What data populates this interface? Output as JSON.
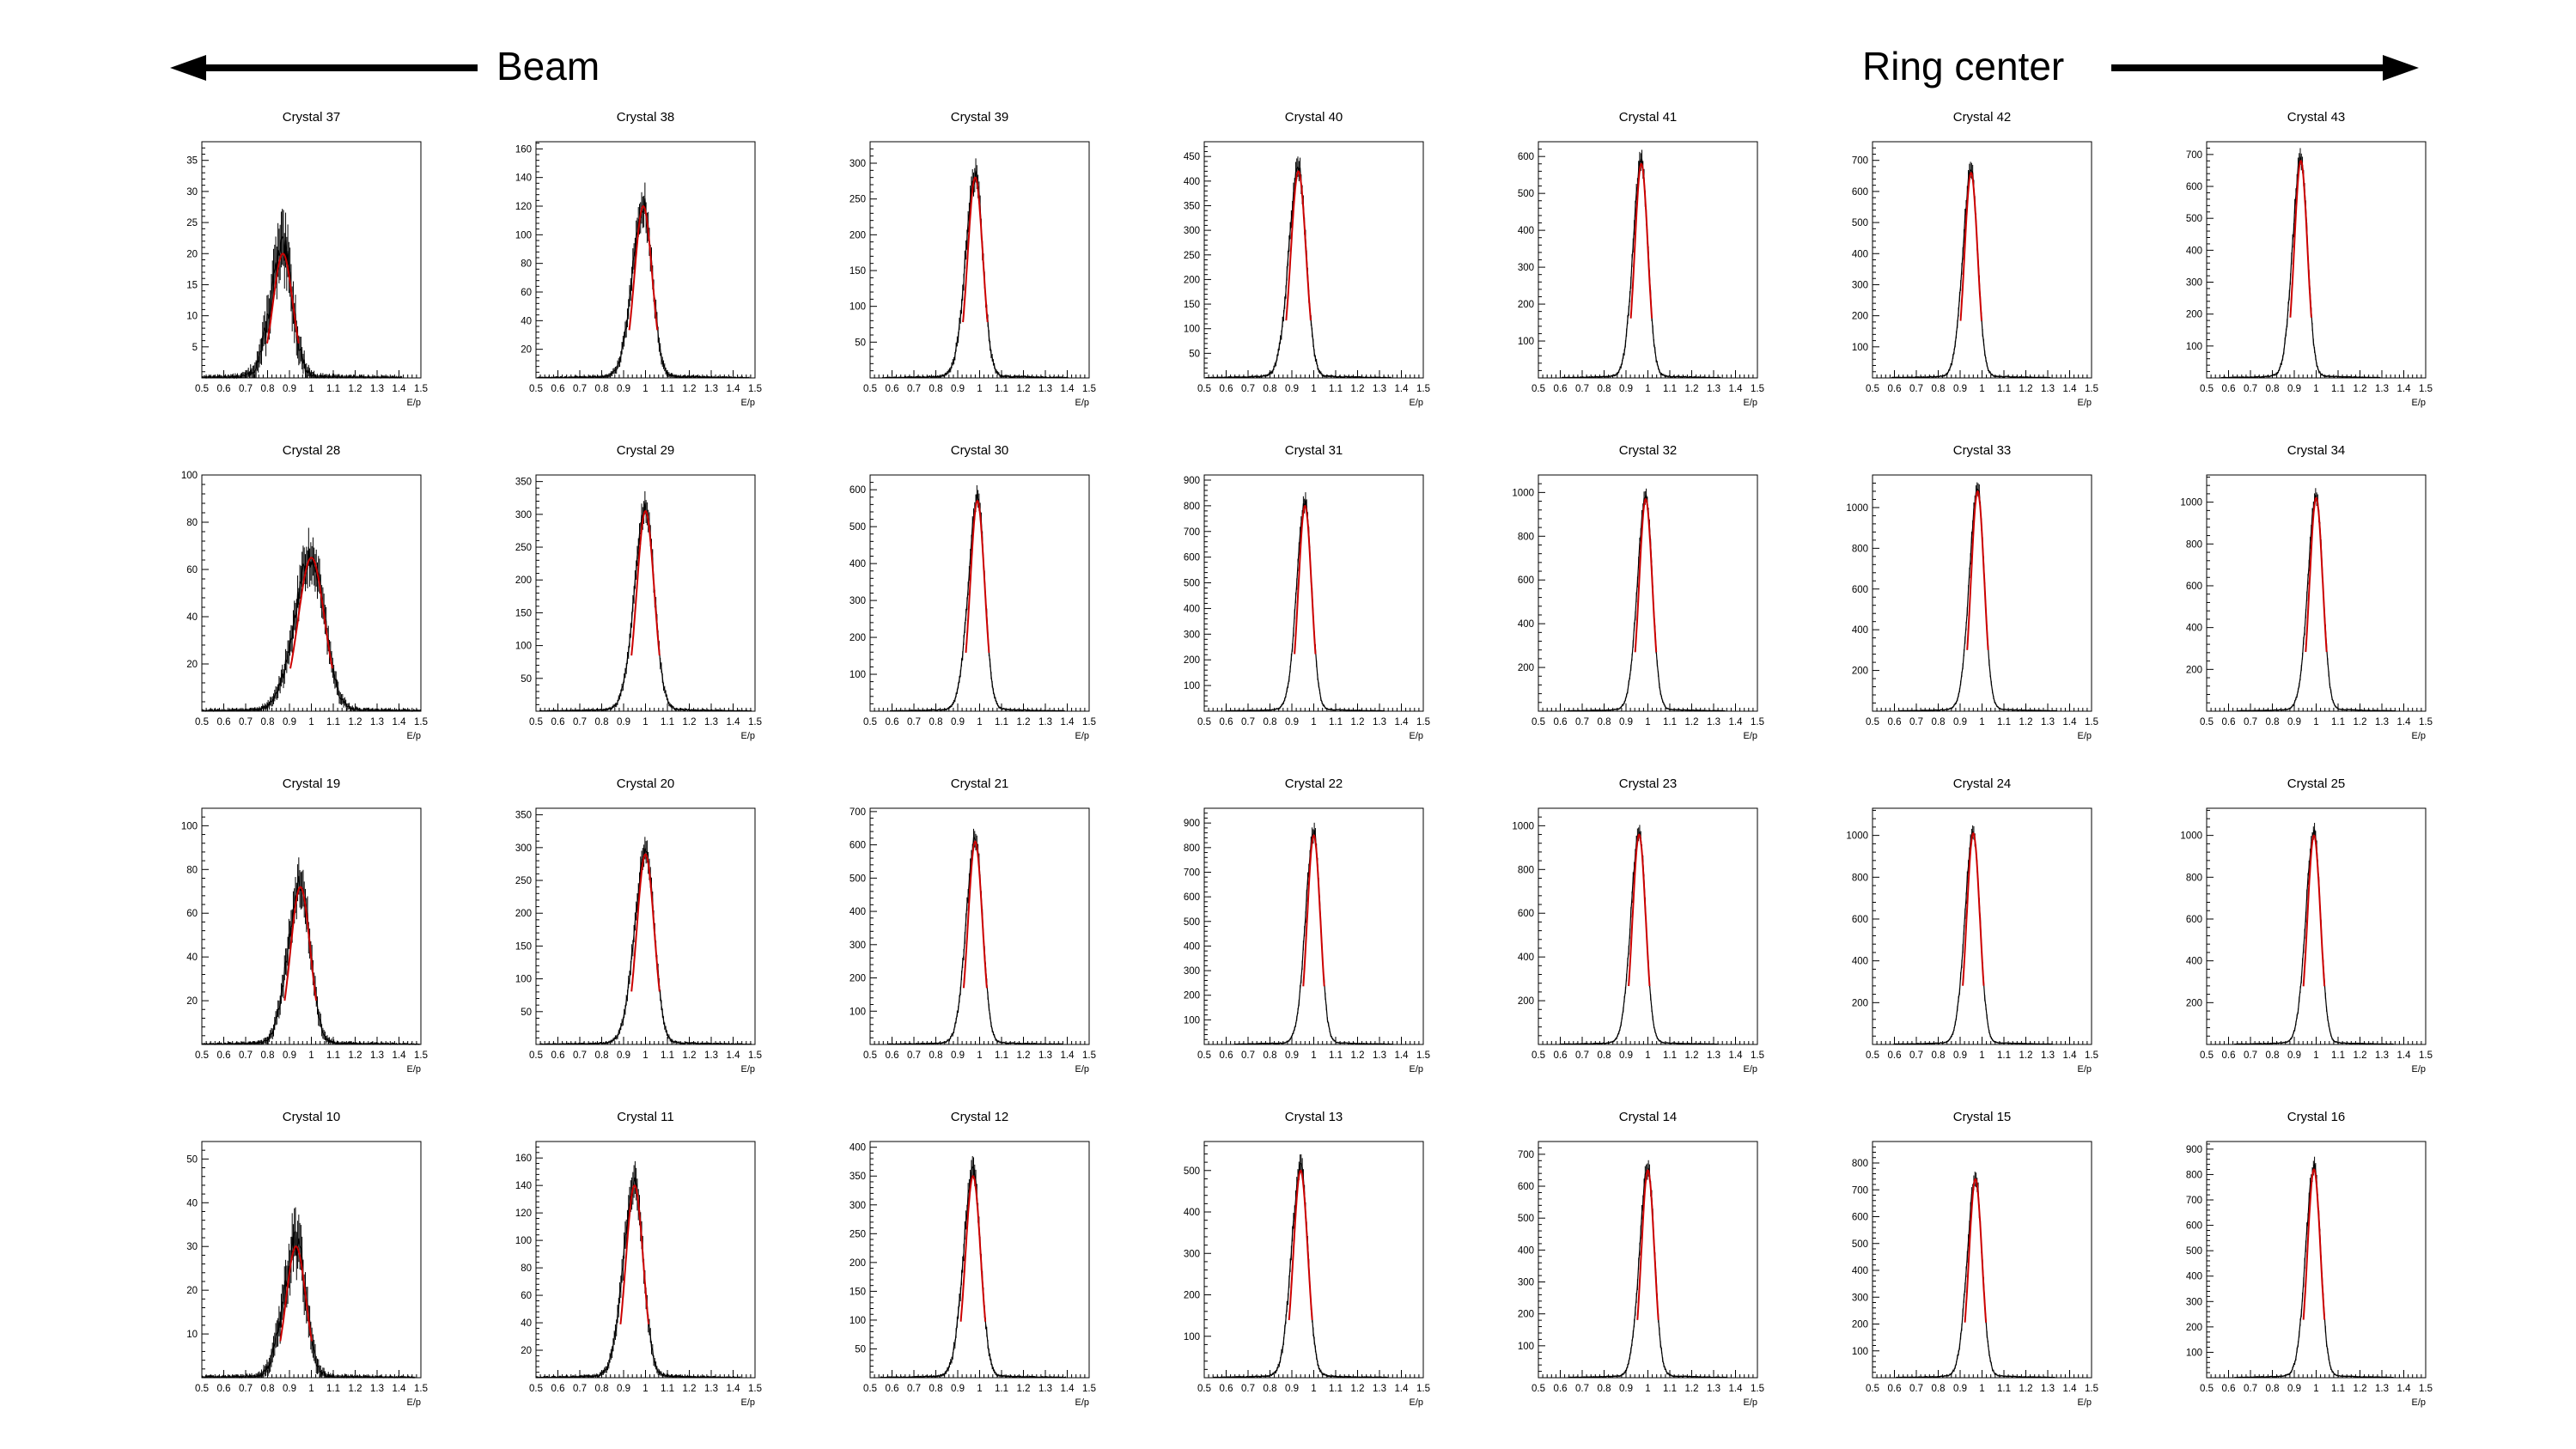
{
  "header": {
    "left_label": "Beam",
    "right_label": "Ring center"
  },
  "colors": {
    "histogram": "#000000",
    "fit": "#cc0000",
    "frame": "#000000"
  },
  "chart_data": {
    "type": "histogram-grid",
    "rows": 4,
    "cols": 7,
    "xlabel": "E/p",
    "xlim": [
      0.5,
      1.5
    ],
    "x_ticks": [
      "0.5",
      "0.6",
      "0.7",
      "0.8",
      "0.9",
      "1",
      "1.1",
      "1.2",
      "1.3",
      "1.4",
      "1.5"
    ],
    "fit": "gaussian (red)",
    "panels": [
      {
        "title": "Crystal 37",
        "peak_x": 0.87,
        "peak_y": 20,
        "sigma": 0.045,
        "ylim": [
          0,
          38
        ],
        "y_ticks": [
          "5",
          "10",
          "15",
          "20",
          "25",
          "30",
          "35"
        ]
      },
      {
        "title": "Crystal 38",
        "peak_x": 0.99,
        "peak_y": 120,
        "sigma": 0.04,
        "ylim": [
          0,
          165
        ],
        "y_ticks": [
          "20",
          "40",
          "60",
          "80",
          "100",
          "120",
          "140",
          "160"
        ]
      },
      {
        "title": "Crystal 39",
        "peak_x": 0.98,
        "peak_y": 280,
        "sigma": 0.035,
        "ylim": [
          0,
          330
        ],
        "y_ticks": [
          "50",
          "100",
          "150",
          "200",
          "250",
          "300"
        ]
      },
      {
        "title": "Crystal 40",
        "peak_x": 0.93,
        "peak_y": 420,
        "sigma": 0.035,
        "ylim": [
          0,
          480
        ],
        "y_ticks": [
          "50",
          "100",
          "150",
          "200",
          "250",
          "300",
          "350",
          "400",
          "450"
        ]
      },
      {
        "title": "Crystal 41",
        "peak_x": 0.97,
        "peak_y": 580,
        "sigma": 0.03,
        "ylim": [
          0,
          640
        ],
        "y_ticks": [
          "100",
          "200",
          "300",
          "400",
          "500",
          "600"
        ]
      },
      {
        "title": "Crystal 42",
        "peak_x": 0.95,
        "peak_y": 660,
        "sigma": 0.03,
        "ylim": [
          0,
          760
        ],
        "y_ticks": [
          "100",
          "200",
          "300",
          "400",
          "500",
          "600",
          "700"
        ]
      },
      {
        "title": "Crystal 43",
        "peak_x": 0.93,
        "peak_y": 680,
        "sigma": 0.03,
        "ylim": [
          0,
          740
        ],
        "y_ticks": [
          "100",
          "200",
          "300",
          "400",
          "500",
          "600",
          "700"
        ]
      },
      {
        "title": "Crystal 28",
        "peak_x": 1.0,
        "peak_y": 65,
        "sigma": 0.06,
        "ylim": [
          0,
          100
        ],
        "y_ticks": [
          "20",
          "40",
          "60",
          "80",
          "100"
        ]
      },
      {
        "title": "Crystal 29",
        "peak_x": 1.0,
        "peak_y": 305,
        "sigma": 0.04,
        "ylim": [
          0,
          360
        ],
        "y_ticks": [
          "50",
          "100",
          "150",
          "200",
          "250",
          "300",
          "350"
        ]
      },
      {
        "title": "Crystal 30",
        "peak_x": 0.99,
        "peak_y": 570,
        "sigma": 0.033,
        "ylim": [
          0,
          640
        ],
        "y_ticks": [
          "100",
          "200",
          "300",
          "400",
          "500",
          "600"
        ]
      },
      {
        "title": "Crystal 31",
        "peak_x": 0.96,
        "peak_y": 800,
        "sigma": 0.03,
        "ylim": [
          0,
          920
        ],
        "y_ticks": [
          "100",
          "200",
          "300",
          "400",
          "500",
          "600",
          "700",
          "800",
          "900"
        ]
      },
      {
        "title": "Crystal 32",
        "peak_x": 0.99,
        "peak_y": 970,
        "sigma": 0.03,
        "ylim": [
          0,
          1080
        ],
        "y_ticks": [
          "200",
          "400",
          "600",
          "800",
          "1000"
        ]
      },
      {
        "title": "Crystal 33",
        "peak_x": 0.98,
        "peak_y": 1080,
        "sigma": 0.03,
        "ylim": [
          0,
          1160
        ],
        "y_ticks": [
          "200",
          "400",
          "600",
          "800",
          "1000"
        ]
      },
      {
        "title": "Crystal 34",
        "peak_x": 1.0,
        "peak_y": 1020,
        "sigma": 0.03,
        "ylim": [
          0,
          1130
        ],
        "y_ticks": [
          "200",
          "400",
          "600",
          "800",
          "1000"
        ]
      },
      {
        "title": "Crystal 19",
        "peak_x": 0.95,
        "peak_y": 72,
        "sigma": 0.045,
        "ylim": [
          0,
          108
        ],
        "y_ticks": [
          "20",
          "40",
          "60",
          "80",
          "100"
        ]
      },
      {
        "title": "Crystal 20",
        "peak_x": 1.0,
        "peak_y": 290,
        "sigma": 0.04,
        "ylim": [
          0,
          360
        ],
        "y_ticks": [
          "50",
          "100",
          "150",
          "200",
          "250",
          "300",
          "350"
        ]
      },
      {
        "title": "Crystal 21",
        "peak_x": 0.98,
        "peak_y": 610,
        "sigma": 0.033,
        "ylim": [
          0,
          710
        ],
        "y_ticks": [
          "100",
          "200",
          "300",
          "400",
          "500",
          "600",
          "700"
        ]
      },
      {
        "title": "Crystal 22",
        "peak_x": 1.0,
        "peak_y": 850,
        "sigma": 0.03,
        "ylim": [
          0,
          960
        ],
        "y_ticks": [
          "100",
          "200",
          "300",
          "400",
          "500",
          "600",
          "700",
          "800",
          "900"
        ]
      },
      {
        "title": "Crystal 23",
        "peak_x": 0.96,
        "peak_y": 960,
        "sigma": 0.03,
        "ylim": [
          0,
          1080
        ],
        "y_ticks": [
          "200",
          "400",
          "600",
          "800",
          "1000"
        ]
      },
      {
        "title": "Crystal 24",
        "peak_x": 0.96,
        "peak_y": 1010,
        "sigma": 0.03,
        "ylim": [
          0,
          1130
        ],
        "y_ticks": [
          "200",
          "400",
          "600",
          "800",
          "1000"
        ]
      },
      {
        "title": "Crystal 25",
        "peak_x": 0.99,
        "peak_y": 1000,
        "sigma": 0.03,
        "ylim": [
          0,
          1130
        ],
        "y_ticks": [
          "200",
          "400",
          "600",
          "800",
          "1000"
        ]
      },
      {
        "title": "Crystal 10",
        "peak_x": 0.93,
        "peak_y": 30,
        "sigma": 0.045,
        "ylim": [
          0,
          54
        ],
        "y_ticks": [
          "10",
          "20",
          "30",
          "40",
          "50"
        ]
      },
      {
        "title": "Crystal 11",
        "peak_x": 0.95,
        "peak_y": 140,
        "sigma": 0.04,
        "ylim": [
          0,
          172
        ],
        "y_ticks": [
          "20",
          "40",
          "60",
          "80",
          "100",
          "120",
          "140",
          "160"
        ]
      },
      {
        "title": "Crystal 12",
        "peak_x": 0.97,
        "peak_y": 350,
        "sigma": 0.035,
        "ylim": [
          0,
          410
        ],
        "y_ticks": [
          "50",
          "100",
          "150",
          "200",
          "250",
          "300",
          "350",
          "400"
        ]
      },
      {
        "title": "Crystal 13",
        "peak_x": 0.94,
        "peak_y": 500,
        "sigma": 0.033,
        "ylim": [
          0,
          570
        ],
        "y_ticks": [
          "100",
          "200",
          "300",
          "400",
          "500"
        ]
      },
      {
        "title": "Crystal 14",
        "peak_x": 1.0,
        "peak_y": 650,
        "sigma": 0.03,
        "ylim": [
          0,
          740
        ],
        "y_ticks": [
          "100",
          "200",
          "300",
          "400",
          "500",
          "600",
          "700"
        ]
      },
      {
        "title": "Crystal 15",
        "peak_x": 0.97,
        "peak_y": 740,
        "sigma": 0.03,
        "ylim": [
          0,
          880
        ],
        "y_ticks": [
          "100",
          "200",
          "300",
          "400",
          "500",
          "600",
          "700",
          "800"
        ]
      },
      {
        "title": "Crystal 16",
        "peak_x": 0.99,
        "peak_y": 820,
        "sigma": 0.03,
        "ylim": [
          0,
          930
        ],
        "y_ticks": [
          "100",
          "200",
          "300",
          "400",
          "500",
          "600",
          "700",
          "800",
          "900"
        ]
      }
    ]
  }
}
